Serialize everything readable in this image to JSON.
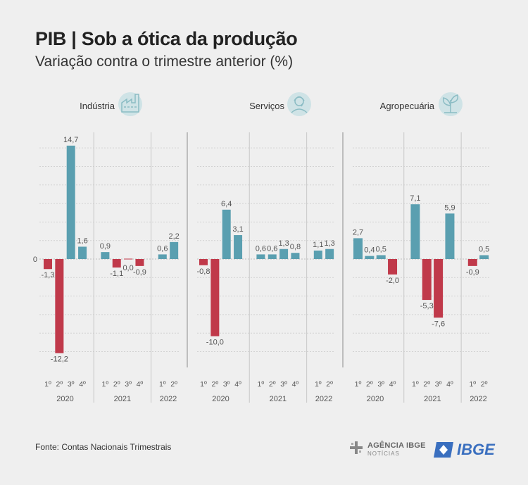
{
  "header": {
    "title": "PIB | Sob a ótica da produção",
    "subtitle": "Variação contra o trimestre anterior (%)"
  },
  "footer": {
    "source": "Fonte: Contas Nacionais Trimestrais",
    "agencia_name": "AGÊNCIA IBGE",
    "agencia_sub": "NOTÍCIAS",
    "ibge_logo": "IBGE"
  },
  "colors": {
    "positive": "#5a9fb0",
    "negative": "#c0394a",
    "icon_bg": "#cfe3e6",
    "icon_fg": "#8bbcc4"
  },
  "chart_data": {
    "type": "bar",
    "zero_label": "0",
    "ylim": [
      -12.2,
      14.7
    ],
    "quarter_labels": [
      "1º",
      "2º",
      "3º",
      "4º",
      "1º",
      "2º",
      "3º",
      "4º",
      "1º",
      "2º"
    ],
    "year_groups": [
      {
        "label": "2020",
        "quarters": 4
      },
      {
        "label": "2021",
        "quarters": 4
      },
      {
        "label": "2022",
        "quarters": 2
      }
    ],
    "series": [
      {
        "name": "Indústria",
        "icon": "factory-icon",
        "values": [
          -1.3,
          -12.2,
          14.7,
          1.6,
          0.9,
          -1.1,
          0.0,
          -0.9,
          0.6,
          2.2
        ],
        "labels": [
          "-1,3",
          "-12,2",
          "14,7",
          "1,6",
          "0,9",
          "-1,1",
          "0,0",
          "-0,9",
          "0,6",
          "2,2"
        ]
      },
      {
        "name": "Serviços",
        "icon": "person-icon",
        "values": [
          -0.8,
          -10.0,
          6.4,
          3.1,
          0.6,
          0.6,
          1.3,
          0.8,
          1.1,
          1.3
        ],
        "labels": [
          "-0,8",
          "-10,0",
          "6,4",
          "3,1",
          "0,6",
          "0,6",
          "1,3",
          "0,8",
          "1,1",
          "1,3"
        ]
      },
      {
        "name": "Agropecuária",
        "icon": "plant-icon",
        "values": [
          2.7,
          0.4,
          0.5,
          -2.0,
          7.1,
          -5.3,
          -7.6,
          5.9,
          -0.9,
          0.5
        ],
        "labels": [
          "2,7",
          "0,4",
          "0,5",
          "-2,0",
          "7,1",
          "-5,3",
          "-7,6",
          "5,9",
          "-0,9",
          "0,5"
        ]
      }
    ]
  }
}
